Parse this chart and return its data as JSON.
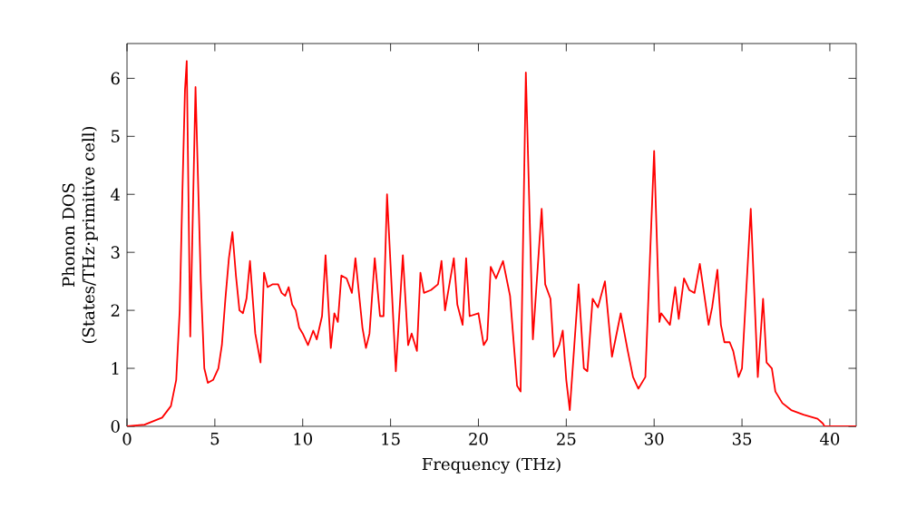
{
  "chart_data": {
    "type": "line",
    "xlabel": "Frequency (THz)",
    "ylabel": "Phonon DOS\n(States/THz·primitive cell)",
    "xlim": [
      0,
      41.5
    ],
    "ylim": [
      0,
      6.6
    ],
    "xticks": [
      0,
      5,
      10,
      15,
      20,
      25,
      30,
      35,
      40
    ],
    "yticks": [
      0,
      1,
      2,
      3,
      4,
      5,
      6
    ],
    "marker": "none",
    "line_style": "solid",
    "series": [
      {
        "color": "#ff0000",
        "x": [
          0,
          1,
          2,
          2.5,
          2.8,
          3.0,
          3.15,
          3.3,
          3.4,
          3.6,
          3.9,
          4.2,
          4.4,
          4.6,
          4.9,
          5.2,
          5.4,
          5.6,
          5.8,
          6.0,
          6.2,
          6.4,
          6.6,
          6.8,
          7.0,
          7.3,
          7.6,
          7.8,
          8.0,
          8.3,
          8.6,
          8.8,
          9.0,
          9.2,
          9.4,
          9.6,
          9.8,
          10.0,
          10.3,
          10.6,
          10.8,
          11.1,
          11.3,
          11.6,
          11.8,
          12.0,
          12.2,
          12.5,
          12.8,
          13.0,
          13.4,
          13.6,
          13.8,
          14.1,
          14.4,
          14.6,
          14.8,
          15.3,
          15.7,
          16.0,
          16.2,
          16.5,
          16.7,
          16.9,
          17.3,
          17.7,
          17.9,
          18.1,
          18.6,
          18.8,
          19.1,
          19.3,
          19.5,
          20.0,
          20.3,
          20.5,
          20.7,
          21.0,
          21.4,
          21.8,
          22.2,
          22.4,
          22.7,
          23.1,
          23.6,
          23.8,
          24.1,
          24.3,
          24.6,
          24.8,
          25.0,
          25.2,
          25.7,
          26.0,
          26.2,
          26.5,
          26.8,
          27.2,
          27.6,
          28.1,
          28.5,
          28.8,
          29.1,
          29.5,
          30.0,
          30.3,
          30.4,
          30.9,
          31.2,
          31.4,
          31.7,
          32.0,
          32.3,
          32.6,
          33.1,
          33.3,
          33.6,
          33.8,
          34.0,
          34.3,
          34.5,
          34.8,
          35.0,
          35.5,
          35.9,
          36.2,
          36.4,
          36.7,
          36.9,
          37.3,
          37.8,
          38.5,
          39.3,
          39.6,
          39.7,
          41.5
        ],
        "values": [
          0,
          0.03,
          0.15,
          0.35,
          0.8,
          2.0,
          4.0,
          5.8,
          6.3,
          1.55,
          5.85,
          2.5,
          1.0,
          0.75,
          0.8,
          1.0,
          1.4,
          2.2,
          2.9,
          3.35,
          2.6,
          2.0,
          1.95,
          2.2,
          2.85,
          1.6,
          1.1,
          2.65,
          2.4,
          2.45,
          2.45,
          2.3,
          2.25,
          2.4,
          2.1,
          2.0,
          1.7,
          1.6,
          1.4,
          1.65,
          1.5,
          1.9,
          2.95,
          1.35,
          1.95,
          1.8,
          2.6,
          2.55,
          2.3,
          2.9,
          1.7,
          1.35,
          1.6,
          2.9,
          1.9,
          1.9,
          4.0,
          0.95,
          2.95,
          1.4,
          1.6,
          1.3,
          2.65,
          2.3,
          2.35,
          2.45,
          2.85,
          2.0,
          2.9,
          2.1,
          1.75,
          2.9,
          1.9,
          1.95,
          1.4,
          1.5,
          2.75,
          2.55,
          2.85,
          2.25,
          0.7,
          0.6,
          6.1,
          1.5,
          3.75,
          2.45,
          2.2,
          1.2,
          1.4,
          1.65,
          0.8,
          0.28,
          2.45,
          1.0,
          0.95,
          2.2,
          2.05,
          2.5,
          1.2,
          1.95,
          1.3,
          0.85,
          0.65,
          0.85,
          4.75,
          1.8,
          1.95,
          1.75,
          2.4,
          1.85,
          2.55,
          2.35,
          2.3,
          2.8,
          1.75,
          2.05,
          2.7,
          1.75,
          1.45,
          1.45,
          1.3,
          0.85,
          1.0,
          3.75,
          0.85,
          2.2,
          1.1,
          1.0,
          0.6,
          0.4,
          0.28,
          0.2,
          0.13,
          0.05,
          0,
          0
        ]
      }
    ]
  }
}
